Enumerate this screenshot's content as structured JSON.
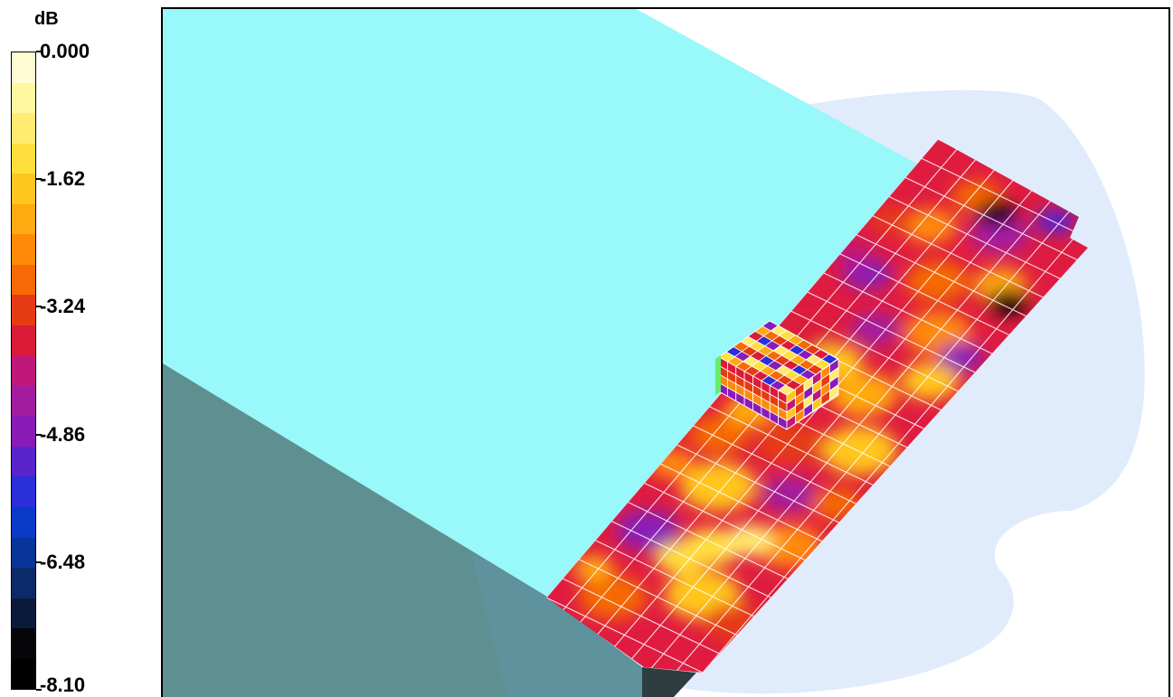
{
  "legend": {
    "unit": "dB",
    "labels": [
      "0.000",
      "-1.62",
      "-3.24",
      "-4.86",
      "-6.48",
      "-8.10"
    ],
    "swatches": [
      "#fffbd2",
      "#fff6a0",
      "#ffec70",
      "#ffdf3c",
      "#ffc61e",
      "#ffaa10",
      "#ff8a08",
      "#f56a05",
      "#e63b12",
      "#db1a38",
      "#c01878",
      "#a31ca0",
      "#8a1bb8",
      "#5a24cc",
      "#2a2edb",
      "#0a3ac8",
      "#09349a",
      "#0b2a6a",
      "#0a1a3a",
      "#050508",
      "#000000"
    ]
  },
  "scene": {
    "colors": {
      "top_face": "#98f8fa",
      "side_face": "#5e8f91",
      "side_face_overlay": "#5f95a7",
      "edge_face": "#2e3e40",
      "sphere": "#e0ecfc",
      "grid": "#ffffff"
    },
    "icons": [
      "device-array-icon",
      "heatmap-plane-icon",
      "radiation-sphere-icon"
    ]
  }
}
